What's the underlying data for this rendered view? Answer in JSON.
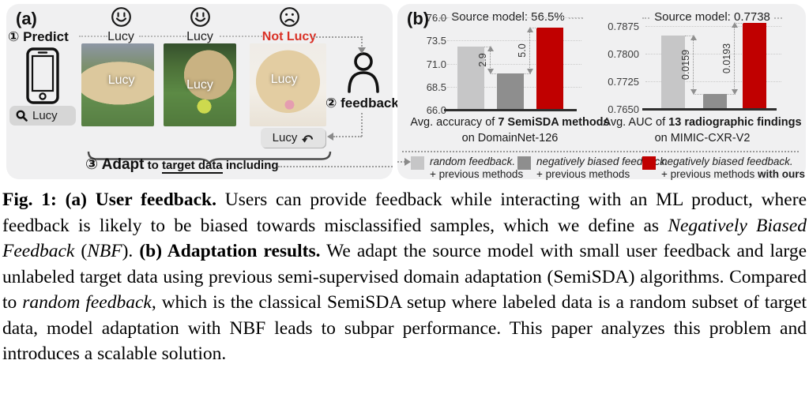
{
  "panel_a": {
    "label": "(a)",
    "predict_label": "① Predict",
    "search_value": "Lucy",
    "predictions": [
      {
        "face": "happy",
        "label": "Lucy",
        "correct": true
      },
      {
        "face": "happy",
        "label": "Lucy",
        "correct": true
      },
      {
        "face": "sad",
        "label": "Not Lucy",
        "correct": false
      }
    ],
    "photos": [
      {
        "overlay": "Lucy",
        "scene": "dog-standing-on-grass"
      },
      {
        "overlay": "Lucy",
        "scene": "dog-on-grass-with-ball"
      },
      {
        "overlay": "Lucy",
        "scene": "puppy-on-white-bed"
      }
    ],
    "feedback_label": "② feedback",
    "correction_button_label": "Lucy",
    "step3_bold": "③ Adapt",
    "step3_pre": " to ",
    "step3_underline": "target data",
    "step3_post": " including"
  },
  "panel_b": {
    "label": "(b)"
  },
  "chart_data": [
    {
      "type": "bar",
      "title": "Source model: 56.5%",
      "categories": [
        "random feedback + previous methods",
        "negatively biased feedback + previous methods",
        "negatively biased feedback + previous methods with ours"
      ],
      "values": [
        72.8,
        69.9,
        74.9
      ],
      "gap_labels": [
        "2.9",
        "5.0"
      ],
      "yticks": [
        "76.0",
        "73.5",
        "71.0",
        "68.5",
        "66.0"
      ],
      "ylim": [
        66.0,
        76.0
      ],
      "grid": true,
      "xlabel_prefix": "Avg. accuracy of ",
      "xlabel_bold": "7 SemiSDA methods",
      "xlabel_line2": "on DomainNet-126"
    },
    {
      "type": "bar",
      "title": "Source model: 0.7738",
      "categories": [
        "random feedback + previous methods",
        "negatively biased feedback + previous methods",
        "negatively biased feedback + previous methods with ours"
      ],
      "values": [
        0.7849,
        0.769,
        0.7883
      ],
      "gap_labels": [
        "0.0159",
        "0.0193"
      ],
      "yticks": [
        "0.7875",
        "0.7800",
        "0.7725",
        "0.7650"
      ],
      "ylim": [
        0.765,
        0.789
      ],
      "grid": true,
      "xlabel_prefix": "Avg. AUC of ",
      "xlabel_bold": "13 radiographic findings",
      "xlabel_line2": "on MIMIC-CXR-V2"
    }
  ],
  "legend": [
    {
      "color": "#c6c6c7",
      "line1": "random feedback.",
      "line2": "+ previous methods",
      "line2_bold": ""
    },
    {
      "color": "#8e8e8e",
      "line1": "negatively biased feedback.",
      "line2": "+ previous methods",
      "line2_bold": ""
    },
    {
      "color": "#c00000",
      "line1": "negatively biased feedback.",
      "line2": "+ previous methods ",
      "line2_bold": "with ours"
    }
  ],
  "colors": {
    "panel_bg": "#f0f0f1",
    "bar_random": "#c6c6c7",
    "bar_nbf": "#8e8e8e",
    "bar_ours": "#c00000",
    "not_lucy_red": "#d93025",
    "label_dark": "#1c1c1c"
  },
  "icons": {
    "search": "magnifier",
    "phone": "smartphone-outline",
    "user": "person-silhouette",
    "return": "return-arrow",
    "happy": "smiley-face",
    "sad": "frowny-face"
  },
  "caption": {
    "segments": [
      {
        "t": "Fig. 1: (a) User feedback.",
        "b": 1
      },
      {
        "t": " Users can provide feedback while interacting with an ML product, where feedback is likely to be biased towards misclassified samples, which we define as "
      },
      {
        "t": "Negatively Biased Feedback",
        "i": 1
      },
      {
        "t": " ("
      },
      {
        "t": "NBF",
        "i": 1
      },
      {
        "t": "). "
      },
      {
        "t": "(b) Adaptation results.",
        "b": 1
      },
      {
        "t": " We adapt the source model with small user feedback and large unlabeled target data using previous semi-supervised domain adaptation (SemiSDA) algorithms. Compared to "
      },
      {
        "t": "random feedback",
        "i": 1
      },
      {
        "t": ", which is the classical SemiSDA setup where labeled data is a random subset of target data, model adaptation with NBF leads to subpar performance. This paper analyzes this problem and introduces a scalable solution."
      }
    ]
  }
}
